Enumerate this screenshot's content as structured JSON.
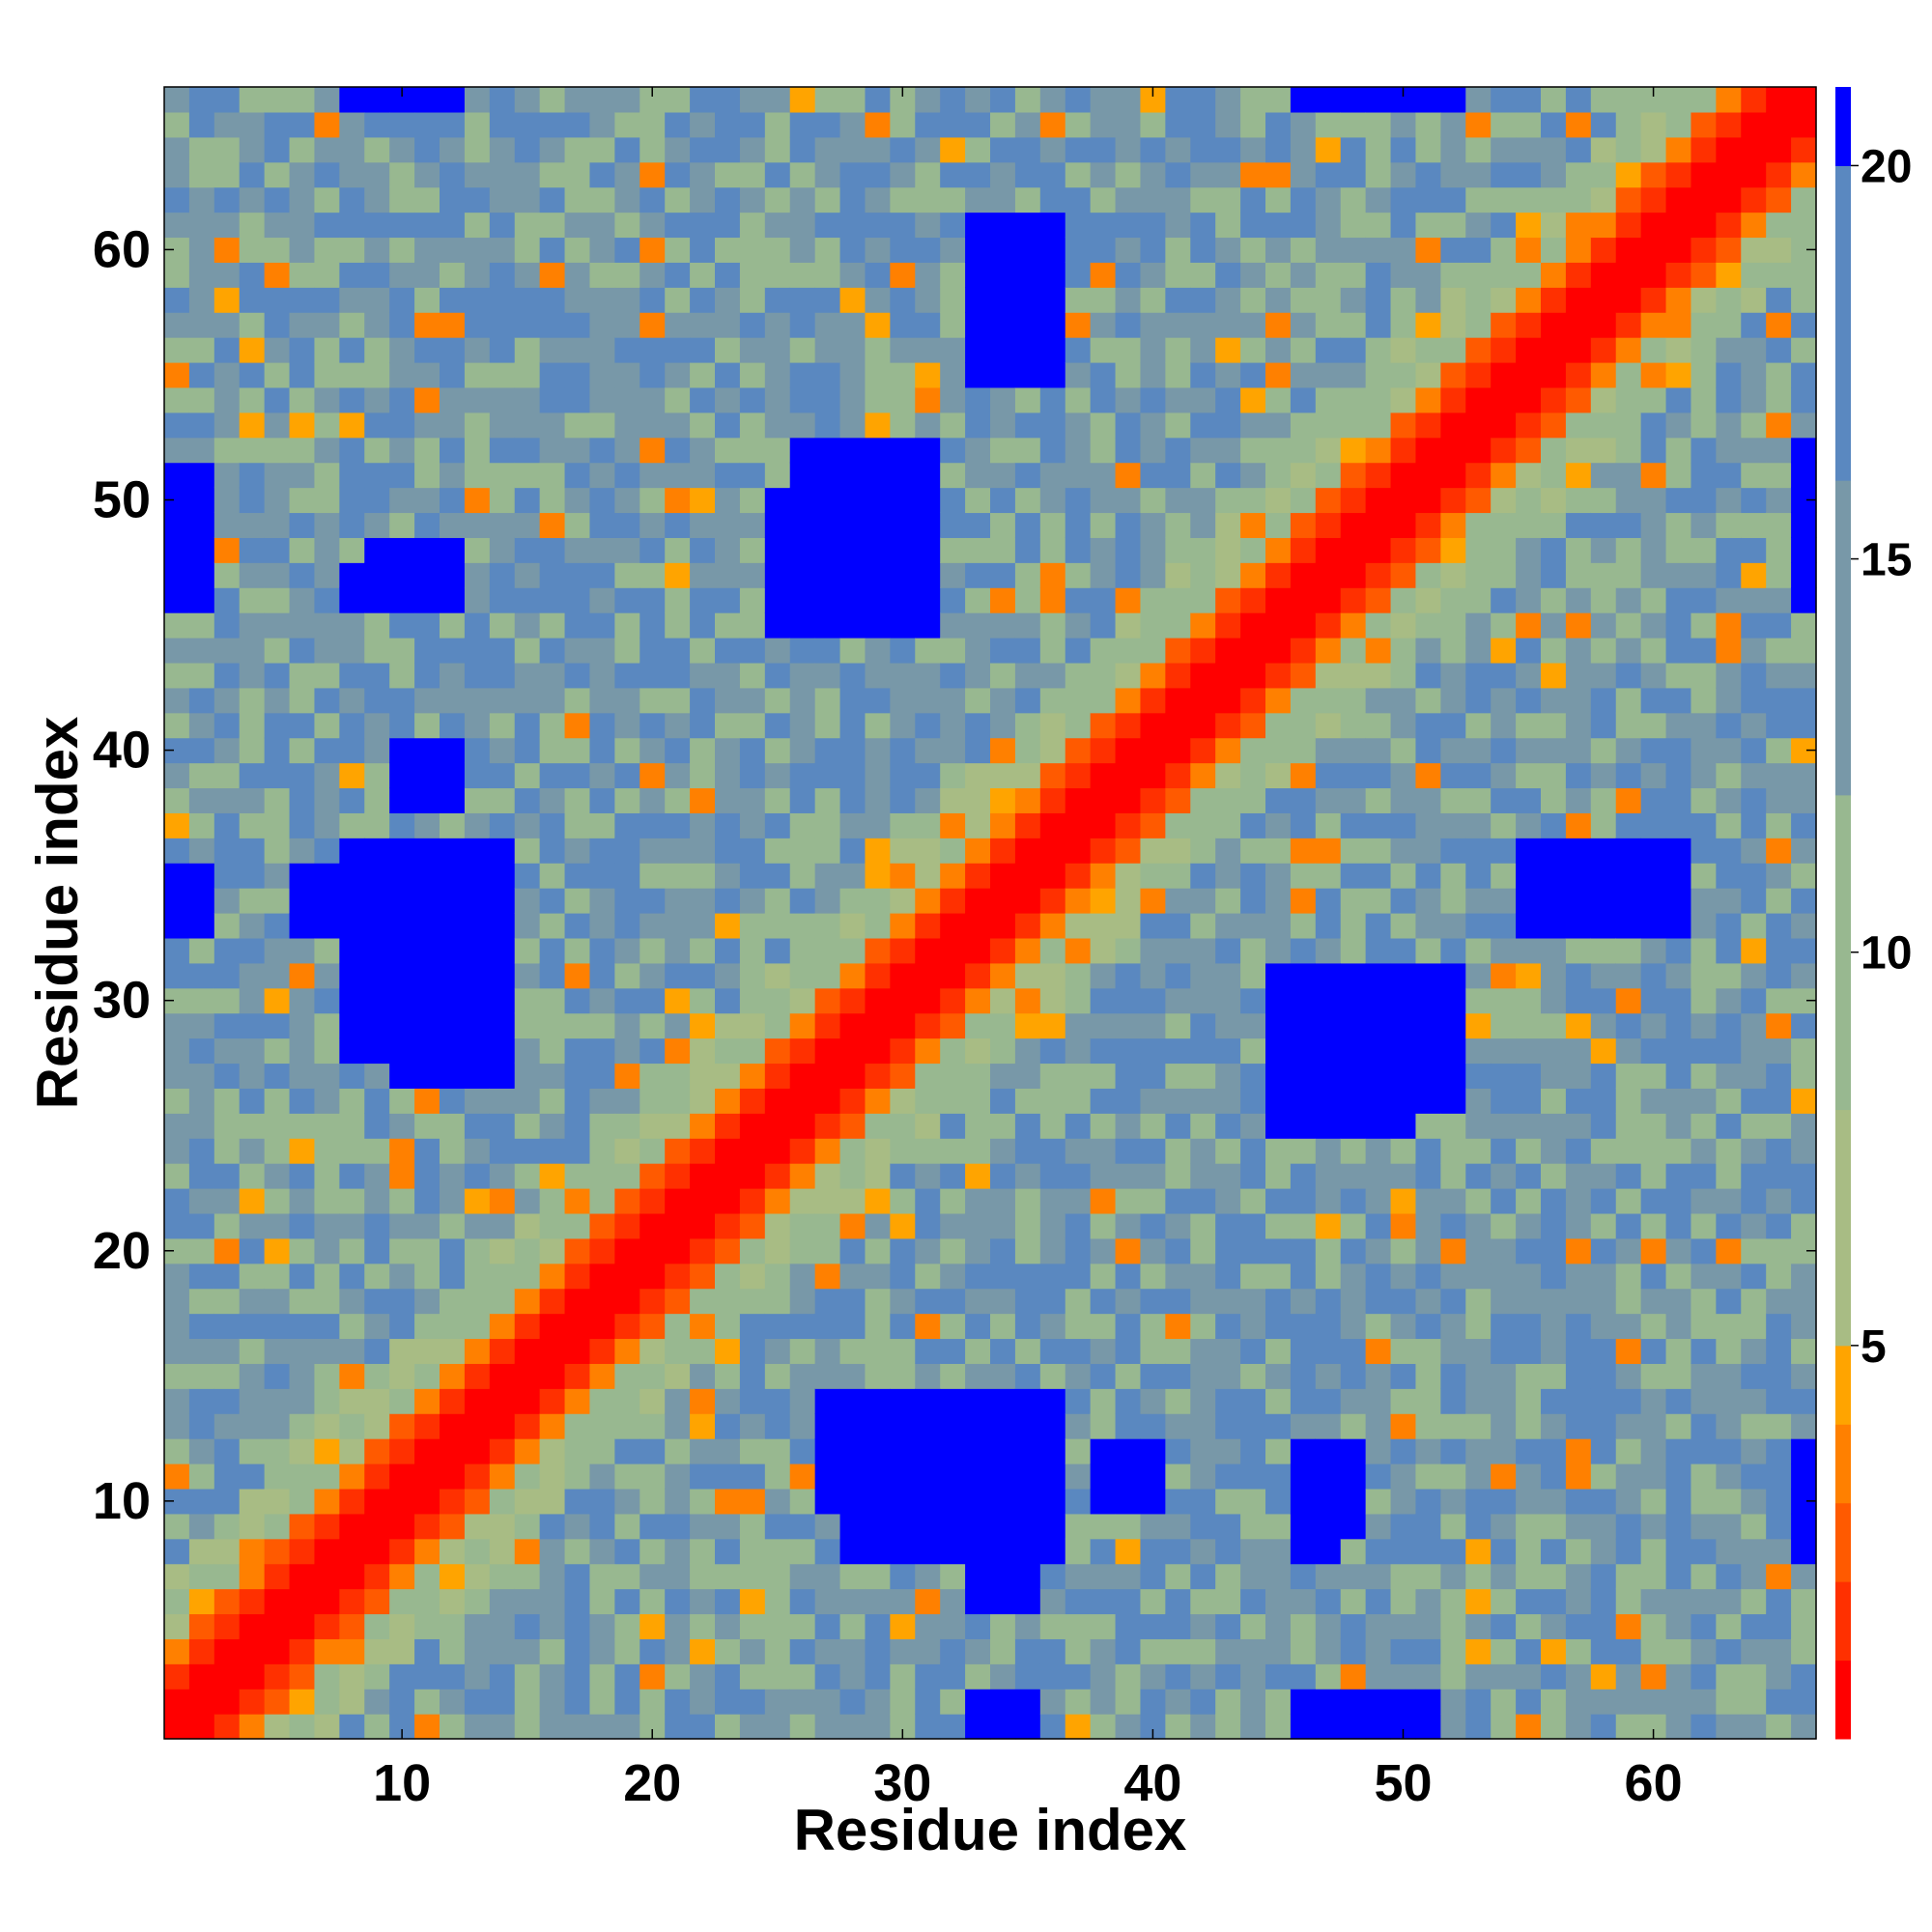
{
  "chart_data": {
    "type": "heatmap",
    "title": "",
    "xlabel": "Residue index",
    "ylabel": "Residue index",
    "n_residues": 66,
    "xlim": [
      0.5,
      66.5
    ],
    "ylim": [
      0.5,
      66.5
    ],
    "x_ticks": [
      "10",
      "20",
      "30",
      "40",
      "50",
      "60"
    ],
    "y_ticks": [
      "10",
      "20",
      "30",
      "40",
      "50",
      "60"
    ],
    "grid": false,
    "colorbar": {
      "position": "right",
      "range": [
        0,
        21
      ],
      "ticks": [
        "5",
        "10",
        "15",
        "20"
      ],
      "bands": [
        {
          "from": 0,
          "to": 1,
          "color": "#ff0000"
        },
        {
          "from": 1,
          "to": 2,
          "color": "#ff3000"
        },
        {
          "from": 2,
          "to": 3,
          "color": "#ff5a00"
        },
        {
          "from": 3,
          "to": 4,
          "color": "#ff8000"
        },
        {
          "from": 4,
          "to": 5,
          "color": "#ffa400"
        },
        {
          "from": 5,
          "to": 8,
          "color": "#a8bc84"
        },
        {
          "from": 8,
          "to": 12,
          "color": "#98b890"
        },
        {
          "from": 12,
          "to": 16,
          "color": "#7898a8"
        },
        {
          "from": 16,
          "to": 20,
          "color": "#5a88c0"
        },
        {
          "from": 20,
          "to": 21,
          "color": "#0000ff"
        }
      ]
    },
    "cell_value_description": "Symmetric residue-residue distance map; value shown per residue pair (i, j)",
    "blue_blocks": [
      {
        "x": [
          28,
          31
        ],
        "y": [
          45,
          52
        ]
      },
      {
        "x": [
          25,
          27
        ],
        "y": [
          45,
          49
        ]
      },
      {
        "x": [
          10,
          14
        ],
        "y": [
          27,
          36
        ]
      },
      {
        "x": [
          8,
          12
        ],
        "y": [
          32,
          34
        ]
      },
      {
        "x": [
          46,
          52
        ],
        "y": [
          26,
          31
        ]
      },
      {
        "x": [
          47,
          50
        ],
        "y": [
          25,
          27
        ]
      },
      {
        "x": [
          28,
          36
        ],
        "y": [
          8,
          14
        ]
      },
      {
        "x": [
          33,
          35
        ],
        "y": [
          6,
          10
        ]
      },
      {
        "x": [
          1,
          2
        ],
        "y": [
          46,
          50
        ]
      },
      {
        "x": [
          1,
          2
        ],
        "y": [
          33,
          35
        ]
      },
      {
        "x": [
          46,
          51
        ],
        "y": [
          1,
          2
        ]
      },
      {
        "x": [
          46,
          52
        ],
        "y": [
          66,
          66
        ]
      },
      {
        "x": [
          9,
          12
        ],
        "y": [
          46,
          48
        ]
      },
      {
        "x": [
          33,
          35
        ],
        "y": [
          1,
          2
        ]
      },
      {
        "x": [
          33,
          36
        ],
        "y": [
          55,
          61
        ]
      },
      {
        "x": [
          66,
          66
        ],
        "y": [
          46,
          51
        ]
      },
      {
        "x": [
          66,
          66
        ],
        "y": [
          8,
          12
        ]
      },
      {
        "x": [
          46,
          47
        ],
        "y": [
          8,
          11
        ]
      },
      {
        "x": [
          56,
          58
        ],
        "y": [
          33,
          35
        ]
      },
      {
        "x": [
          10,
          12
        ],
        "y": [
          38,
          40
        ]
      }
    ]
  }
}
